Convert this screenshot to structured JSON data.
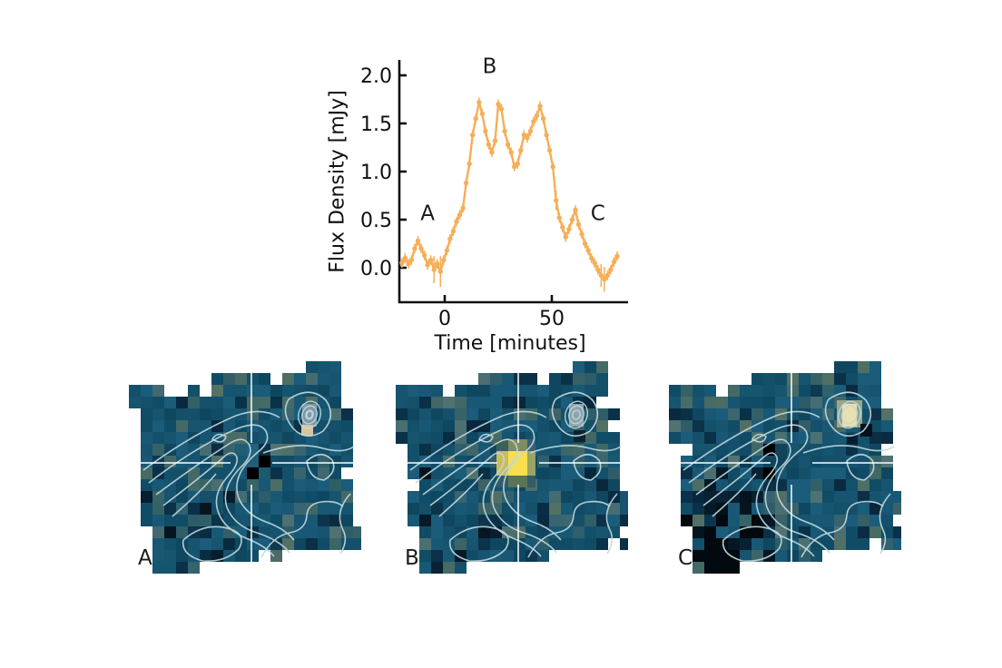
{
  "chart_data": {
    "type": "line",
    "title": "",
    "xlabel": "Time [minutes]",
    "ylabel": "Flux Density [mJy]",
    "xlim": [
      -24.5,
      85.5
    ],
    "ylim": [
      -0.36,
      2.16
    ],
    "xticks": [
      0,
      50
    ],
    "yticks": [
      "0.0",
      "0.5",
      "1.0",
      "1.5",
      "2.0"
    ],
    "ytick_values": [
      0.0,
      0.5,
      1.0,
      1.5,
      2.0
    ],
    "grid": false,
    "legend": "none",
    "line_color": "#F6AE57",
    "axis_color": "#111111",
    "marker": "circle",
    "x": [
      -20,
      -18.5,
      -17,
      -15.5,
      -14,
      -12.5,
      -11,
      -9.5,
      -8,
      -6.5,
      -5,
      -3.5,
      -2,
      -0.5,
      1,
      2.5,
      4,
      5.5,
      7,
      8.5,
      10,
      11.5,
      13,
      14.5,
      16,
      17.5,
      19,
      20.5,
      22,
      23.5,
      25,
      26.5,
      28,
      29.5,
      31,
      32.5,
      34,
      35.5,
      37,
      38.5,
      40,
      41.5,
      43,
      44.5,
      46,
      47.5,
      49,
      50.5,
      52,
      53.5,
      55,
      56.5,
      58,
      59.5,
      61,
      62.5,
      64,
      65.5,
      67,
      68.5,
      70,
      71.5,
      73,
      74.5,
      76,
      77.5,
      79,
      80.5
    ],
    "y": [
      0.05,
      0.1,
      0.04,
      0.08,
      0.2,
      0.28,
      0.2,
      0.13,
      0.03,
      0.08,
      -0.02,
      0.04,
      -0.04,
      0.08,
      0.18,
      0.3,
      0.38,
      0.48,
      0.55,
      0.62,
      0.88,
      1.08,
      1.38,
      1.55,
      1.72,
      1.6,
      1.42,
      1.28,
      1.2,
      1.32,
      1.7,
      1.65,
      1.42,
      1.28,
      1.2,
      1.05,
      1.08,
      1.22,
      1.38,
      1.35,
      1.42,
      1.52,
      1.58,
      1.68,
      1.55,
      1.38,
      1.22,
      1.05,
      0.7,
      0.52,
      0.42,
      0.32,
      0.4,
      0.5,
      0.6,
      0.45,
      0.35,
      0.25,
      0.18,
      0.1,
      0.05,
      -0.02,
      -0.08,
      -0.12,
      -0.08,
      -0.02,
      0.06,
      0.12
    ],
    "yerr_default": 0.05,
    "yerr_overrides": {
      "10": 0.14,
      "12": 0.16,
      "48": 0.1,
      "62": 0.12,
      "63": 0.13
    },
    "annotations": [
      {
        "text": "A",
        "x": -8,
        "y": 0.57
      },
      {
        "text": "B",
        "x": 21,
        "y": 2.1
      },
      {
        "text": "C",
        "x": 71.5,
        "y": 0.57
      }
    ]
  },
  "panels": [
    {
      "label": "A",
      "seed": 101,
      "flare": false,
      "corner": {
        "fill": "#7E99A8",
        "rings": 4,
        "accent": "#D8C79B",
        "accent_type": "tan-below",
        "halo": "none"
      },
      "bl_dark": 0.07,
      "center_tint": "bright"
    },
    {
      "label": "B",
      "seed": 202,
      "flare": true,
      "corner": {
        "fill": "#8FA3AC",
        "rings": 3,
        "accent": "#0B2430",
        "accent_type": "dark-below",
        "halo": "none"
      },
      "bl_dark": 0.12,
      "center_tint": "none"
    },
    {
      "label": "C",
      "seed": 303,
      "flare": false,
      "corner": {
        "fill": "#EADFAE",
        "rings": 2,
        "accent": "#05121C",
        "accent_type": "dark-right",
        "halo": "#98A78C"
      },
      "bl_dark": 0.42,
      "center_tint": "dark"
    }
  ],
  "map_palette": {
    "base": "#14506A",
    "teal_variants": [
      "#114C66",
      "#14506A",
      "#16546F",
      "#185875",
      "#0F4760",
      "#1A5C79"
    ],
    "sage": "#6F7F63",
    "tan": "#93987B",
    "dark": "#08263C",
    "navy": "#0A3148",
    "black": "#04121C",
    "contour": "#BFD8DE",
    "crosshair": "#FFFFFF",
    "flare_core": "#F8DF4D",
    "label_color": "#1a1a1a"
  }
}
